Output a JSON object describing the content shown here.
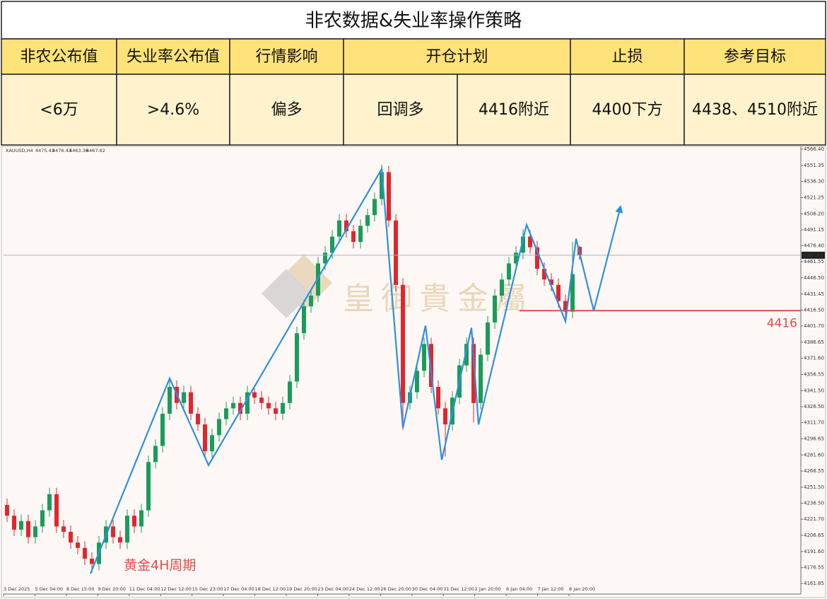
{
  "table": {
    "title": "非农数据&失业率操作策略",
    "headers": [
      "非农公布值",
      "失业率公布值",
      "行情影响",
      "开仓计划",
      "止损",
      "参考目标"
    ],
    "row": [
      "<6万",
      ">4.6%",
      "偏多",
      "回调多",
      "4416附近",
      "4400下方",
      "4438、4510附近"
    ]
  },
  "chart_data": {
    "type": "candlestick",
    "symbol": "XAUUSD,H4",
    "watermark": "皇御貴金屬",
    "annotation": "黄金4H周期",
    "up_color": "#1a9c5a",
    "down_color": "#e0262e",
    "x_labels": [
      "3 Dec 2025",
      "5 Dec 04:00",
      "8 Dec 15:00",
      "9 Dec 20:00",
      "11 Dec 04:00",
      "12 Dec 12:00",
      "15 Dec 23:00",
      "17 Dec 04:00",
      "18 Dec 12:00",
      "19 Dec 20:00",
      "23 Dec 04:00",
      "24 Dec 12:00",
      "26 Dec 20:00",
      "30 Dec 04:00",
      "31 Dec 12:00",
      "2 Jan 20:00",
      "6 Jan 04:00",
      "7 Jan 12:00",
      "8 Jan 20:00"
    ],
    "xlim": [
      -0.5,
      112.3
    ],
    "ylim": [
      4152,
      4569
    ],
    "yticks": [
      {
        "value": 4566.4,
        "label": "4566.40"
      },
      {
        "value": 4551.35,
        "label": "4551.35"
      },
      {
        "value": 4536.3,
        "label": "4536.30"
      },
      {
        "value": 4521.25,
        "label": "4521.25"
      },
      {
        "value": 4506.2,
        "label": "4506.20"
      },
      {
        "value": 4491.15,
        "label": "4491.15"
      },
      {
        "value": 4476.4,
        "label": "4476.40"
      },
      {
        "value": 4461.55,
        "label": "4461.55"
      },
      {
        "value": 4446.5,
        "label": "4446.50"
      },
      {
        "value": 4431.45,
        "label": "4431.45"
      },
      {
        "value": 4416.5,
        "label": "4416.50"
      },
      {
        "value": 4401.7,
        "label": "4401.70"
      },
      {
        "value": 4386.65,
        "label": "4386.65"
      },
      {
        "value": 4371.6,
        "label": "4371.60"
      },
      {
        "value": 4356.55,
        "label": "4356.55"
      },
      {
        "value": 4341.5,
        "label": "4341.50"
      },
      {
        "value": 4326.5,
        "label": "4326.50"
      },
      {
        "value": 4311.7,
        "label": "4311.70"
      },
      {
        "value": 4296.65,
        "label": "4296.65"
      },
      {
        "value": 4281.6,
        "label": "4281.60"
      },
      {
        "value": 4266.55,
        "label": "4266.55"
      },
      {
        "value": 4251.5,
        "label": "4251.50"
      },
      {
        "value": 4236.5,
        "label": "4236.50"
      },
      {
        "value": 4221.7,
        "label": "4221.70"
      },
      {
        "value": 4206.65,
        "label": "4206.65"
      },
      {
        "value": 4191.6,
        "label": "4191.60"
      },
      {
        "value": 4176.55,
        "label": "4176.55"
      },
      {
        "value": 4161.85,
        "label": "4161.85"
      }
    ],
    "open": [
      4235,
      4225,
      4212,
      4220,
      4205,
      4215,
      4230,
      4245,
      4215,
      4210,
      4200,
      4195,
      4185,
      4180,
      4200,
      4215,
      4205,
      4200,
      4225,
      4215,
      4230,
      4275,
      4290,
      4320,
      4345,
      4330,
      4340,
      4320,
      4310,
      4285,
      4300,
      4315,
      4325,
      4330,
      4320,
      4340,
      4335,
      4330,
      4325,
      4320,
      4330,
      4350,
      4395,
      4420,
      4430,
      4460,
      4470,
      4485,
      4500,
      4490,
      4480,
      4495,
      4505,
      4520,
      4545,
      4500,
      4440,
      4330,
      4340,
      4360,
      4385,
      4345,
      4325,
      4310,
      4335,
      4365,
      4385,
      4330,
      4375,
      4405,
      4430,
      4445,
      4460,
      4470,
      4485,
      4475,
      4455,
      4445,
      4440,
      4425,
      4415,
      4475.43
    ],
    "high": [
      4241,
      4231,
      4226,
      4226,
      4221,
      4236,
      4251,
      4251,
      4221,
      4216,
      4206,
      4201,
      4191,
      4206,
      4221,
      4221,
      4211,
      4231,
      4231,
      4236,
      4281,
      4296,
      4326,
      4351,
      4351,
      4346,
      4346,
      4326,
      4316,
      4306,
      4321,
      4331,
      4336,
      4336,
      4346,
      4346,
      4341,
      4336,
      4331,
      4336,
      4356,
      4401,
      4426,
      4436,
      4466,
      4476,
      4491,
      4506,
      4506,
      4496,
      4501,
      4511,
      4526,
      4552,
      4551,
      4506,
      4446,
      4346,
      4366,
      4391,
      4391,
      4351,
      4331,
      4341,
      4371,
      4391,
      4391,
      4381,
      4411,
      4436,
      4451,
      4466,
      4476,
      4492,
      4491,
      4481,
      4461,
      4451,
      4446,
      4431,
      4480,
      4476.43
    ],
    "low": [
      4219,
      4206,
      4206,
      4199,
      4199,
      4209,
      4224,
      4209,
      4204,
      4194,
      4189,
      4179,
      4172,
      4174,
      4194,
      4199,
      4194,
      4194,
      4209,
      4209,
      4224,
      4269,
      4284,
      4314,
      4324,
      4324,
      4314,
      4304,
      4278,
      4279,
      4294,
      4309,
      4319,
      4314,
      4314,
      4329,
      4324,
      4319,
      4314,
      4314,
      4324,
      4344,
      4389,
      4414,
      4424,
      4454,
      4464,
      4479,
      4484,
      4474,
      4474,
      4489,
      4499,
      4514,
      4494,
      4434,
      4305,
      4324,
      4334,
      4354,
      4339,
      4319,
      4280,
      4304,
      4329,
      4359,
      4312,
      4324,
      4369,
      4399,
      4424,
      4439,
      4454,
      4464,
      4469,
      4449,
      4439,
      4434,
      4419,
      4407,
      4409,
      4463.36
    ],
    "close": [
      4225,
      4212,
      4220,
      4205,
      4215,
      4230,
      4245,
      4215,
      4210,
      4200,
      4195,
      4185,
      4180,
      4200,
      4215,
      4205,
      4200,
      4225,
      4215,
      4230,
      4275,
      4290,
      4320,
      4345,
      4330,
      4340,
      4320,
      4310,
      4285,
      4300,
      4315,
      4325,
      4330,
      4320,
      4340,
      4335,
      4330,
      4325,
      4320,
      4330,
      4350,
      4395,
      4420,
      4430,
      4460,
      4470,
      4485,
      4500,
      4490,
      4480,
      4495,
      4505,
      4520,
      4545,
      4500,
      4440,
      4330,
      4340,
      4360,
      4385,
      4345,
      4325,
      4310,
      4335,
      4365,
      4385,
      4330,
      4375,
      4405,
      4430,
      4445,
      4460,
      4470,
      4485,
      4475,
      4455,
      4445,
      4440,
      4425,
      4415,
      4450,
      4467.62
    ],
    "zigzag": {
      "color": "#2f8fe0",
      "x": [
        11.8,
        23,
        28.5,
        53,
        56,
        59.2,
        61.5,
        65.7,
        66.7,
        73.5,
        79,
        80.5,
        83,
        86.8
      ],
      "values": [
        4171,
        4353,
        4272,
        4548,
        4307,
        4402,
        4277,
        4400,
        4310,
        4496,
        4406,
        4483,
        4416,
        4513
      ]
    },
    "level": {
      "value": 4416,
      "x_start": 72.5,
      "color": "#e94b4b"
    }
  }
}
